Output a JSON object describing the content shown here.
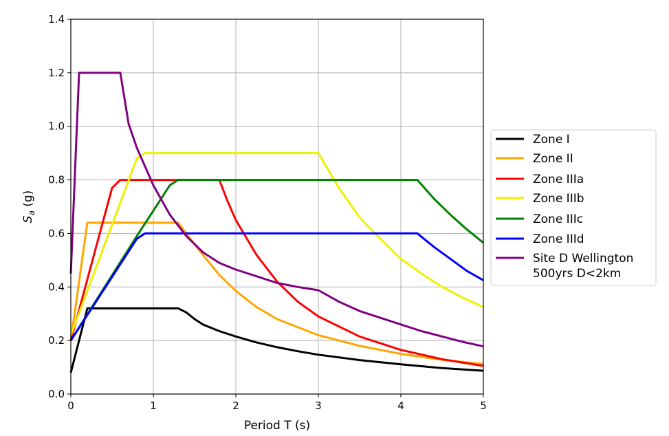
{
  "chart_data": {
    "type": "line",
    "xlabel": "Period T (s)",
    "ylabel_main": "S",
    "ylabel_sub": "a",
    "ylabel_unit": " (g)",
    "xlim": [
      0,
      5
    ],
    "ylim": [
      0,
      1.4
    ],
    "grid": true,
    "legend_placement": "outside-right",
    "x_ticks": [
      "0",
      "1",
      "2",
      "3",
      "4",
      "5"
    ],
    "y_ticks": [
      "0.0",
      "0.2",
      "0.4",
      "0.6",
      "0.8",
      "1.0",
      "1.2",
      "1.4"
    ],
    "series": [
      {
        "name": "Zone I",
        "color": "#000000",
        "points": [
          [
            0,
            0.08
          ],
          [
            0.2,
            0.32
          ],
          [
            1.3,
            0.32
          ],
          [
            1.4,
            0.305
          ],
          [
            1.5,
            0.28
          ],
          [
            1.6,
            0.26
          ],
          [
            1.8,
            0.235
          ],
          [
            2,
            0.215
          ],
          [
            2.25,
            0.193
          ],
          [
            2.5,
            0.175
          ],
          [
            2.75,
            0.16
          ],
          [
            3,
            0.147
          ],
          [
            3.5,
            0.127
          ],
          [
            4,
            0.111
          ],
          [
            4.5,
            0.097
          ],
          [
            5,
            0.087
          ]
        ]
      },
      {
        "name": "Zone II",
        "color": "#ffa500",
        "points": [
          [
            0,
            0.2
          ],
          [
            0.2,
            0.64
          ],
          [
            1.3,
            0.64
          ],
          [
            1.4,
            0.6
          ],
          [
            1.6,
            0.52
          ],
          [
            1.8,
            0.445
          ],
          [
            2,
            0.385
          ],
          [
            2.25,
            0.325
          ],
          [
            2.5,
            0.28
          ],
          [
            3,
            0.22
          ],
          [
            3.5,
            0.18
          ],
          [
            4,
            0.15
          ],
          [
            4.5,
            0.128
          ],
          [
            5,
            0.112
          ]
        ]
      },
      {
        "name": "Zone IIIa",
        "color": "#ff0000",
        "points": [
          [
            0,
            0.2
          ],
          [
            0.5,
            0.77
          ],
          [
            0.6,
            0.8
          ],
          [
            1.8,
            0.8
          ],
          [
            1.9,
            0.72
          ],
          [
            2,
            0.65
          ],
          [
            2.25,
            0.52
          ],
          [
            2.5,
            0.42
          ],
          [
            2.75,
            0.345
          ],
          [
            3,
            0.29
          ],
          [
            3.5,
            0.215
          ],
          [
            4,
            0.165
          ],
          [
            4.5,
            0.13
          ],
          [
            5,
            0.105
          ]
        ]
      },
      {
        "name": "Zone IIIb",
        "color": "#f0f000",
        "points": [
          [
            0,
            0.22
          ],
          [
            0.8,
            0.88
          ],
          [
            0.9,
            0.9
          ],
          [
            3,
            0.9
          ],
          [
            3.25,
            0.77
          ],
          [
            3.5,
            0.66
          ],
          [
            3.75,
            0.58
          ],
          [
            4,
            0.505
          ],
          [
            4.25,
            0.45
          ],
          [
            4.5,
            0.4
          ],
          [
            4.75,
            0.36
          ],
          [
            5,
            0.325
          ]
        ]
      },
      {
        "name": "Zone IIIc",
        "color": "#008000",
        "points": [
          [
            0,
            0.2
          ],
          [
            0.8,
            0.59
          ],
          [
            1.2,
            0.78
          ],
          [
            1.3,
            0.8
          ],
          [
            4.2,
            0.8
          ],
          [
            4.4,
            0.73
          ],
          [
            4.6,
            0.67
          ],
          [
            4.8,
            0.615
          ],
          [
            5,
            0.565
          ]
        ]
      },
      {
        "name": "Zone IIId",
        "color": "#0000ff",
        "points": [
          [
            0,
            0.2
          ],
          [
            0.8,
            0.58
          ],
          [
            0.9,
            0.6
          ],
          [
            4.2,
            0.6
          ],
          [
            4.4,
            0.55
          ],
          [
            4.6,
            0.505
          ],
          [
            4.8,
            0.46
          ],
          [
            5,
            0.425
          ]
        ]
      },
      {
        "name": "Site D Wellington 500yrs D<2km",
        "legend_lines": [
          "Site D Wellington",
          "500yrs D<2km"
        ],
        "color": "#800080",
        "points": [
          [
            0,
            0.45
          ],
          [
            0.1,
            1.2
          ],
          [
            0.6,
            1.2
          ],
          [
            0.7,
            1.01
          ],
          [
            0.8,
            0.92
          ],
          [
            0.9,
            0.85
          ],
          [
            1,
            0.78
          ],
          [
            1.2,
            0.67
          ],
          [
            1.4,
            0.59
          ],
          [
            1.6,
            0.53
          ],
          [
            1.8,
            0.49
          ],
          [
            2,
            0.465
          ],
          [
            2.25,
            0.44
          ],
          [
            2.5,
            0.415
          ],
          [
            2.75,
            0.4
          ],
          [
            3,
            0.388
          ],
          [
            3.25,
            0.345
          ],
          [
            3.5,
            0.31
          ],
          [
            3.75,
            0.285
          ],
          [
            4,
            0.26
          ],
          [
            4.25,
            0.235
          ],
          [
            4.5,
            0.215
          ],
          [
            4.75,
            0.195
          ],
          [
            5,
            0.178
          ]
        ]
      }
    ]
  }
}
